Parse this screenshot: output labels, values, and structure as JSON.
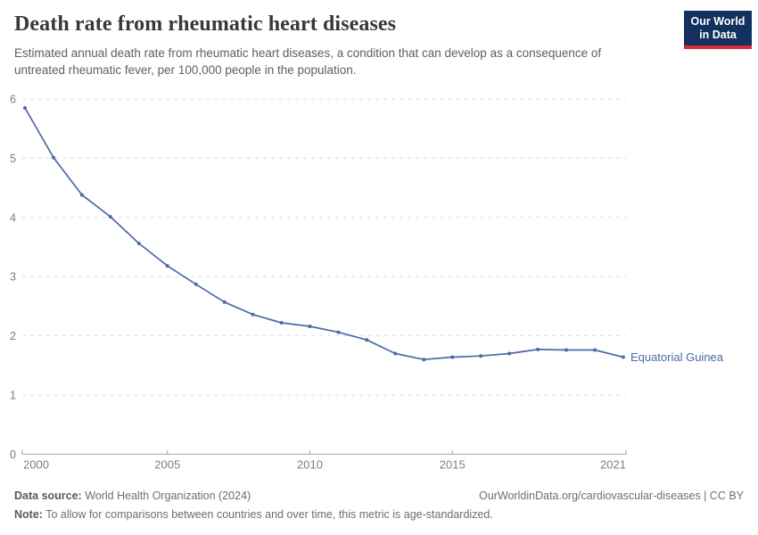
{
  "header": {
    "title": "Death rate from rheumatic heart diseases",
    "subtitle_line1": "Estimated annual death rate from rheumatic heart diseases, a condition that can develop as a consequence of",
    "subtitle_line2": "untreated rheumatic fever, per 100,000 people in the population.",
    "logo": {
      "line1": "Our World",
      "line2": "in Data",
      "bg_color": "#12315f",
      "accent_color": "#dc2a3d"
    }
  },
  "chart_data": {
    "type": "line",
    "title": "Death rate from rheumatic heart diseases",
    "xlabel": "",
    "ylabel": "",
    "xlim": [
      2000,
      2021
    ],
    "ylim": [
      0,
      6
    ],
    "x_ticks": [
      2000,
      2005,
      2010,
      2015,
      2021
    ],
    "y_ticks": [
      0,
      1,
      2,
      3,
      4,
      5,
      6
    ],
    "grid": "horizontal-dashed",
    "legend_position": "end-of-line-label",
    "x": [
      2000,
      2001,
      2002,
      2003,
      2004,
      2005,
      2006,
      2007,
      2008,
      2009,
      2010,
      2011,
      2012,
      2013,
      2014,
      2015,
      2016,
      2017,
      2018,
      2019,
      2020,
      2021
    ],
    "series": [
      {
        "name": "Equatorial Guinea",
        "color": "#4b6aa5",
        "values": [
          5.85,
          5.01,
          4.38,
          4.01,
          3.56,
          3.18,
          2.87,
          2.57,
          2.36,
          2.22,
          2.16,
          2.06,
          1.93,
          1.7,
          1.6,
          1.64,
          1.66,
          1.7,
          1.77,
          1.76,
          1.76,
          1.64
        ]
      }
    ],
    "entity_label": "Equatorial Guinea",
    "axis_color": "#a6a6a6",
    "grid_color": "#dcdcdc",
    "tick_label_color": "#7d7d7d"
  },
  "footer": {
    "datasource_label": "Data source:",
    "datasource_text": " World Health Organization (2024)",
    "link_text": "OurWorldinData.org/cardiovascular-diseases | CC BY",
    "note_label": "Note:",
    "note_text": " To allow for comparisons between countries and over time, this metric is age-standardized."
  }
}
